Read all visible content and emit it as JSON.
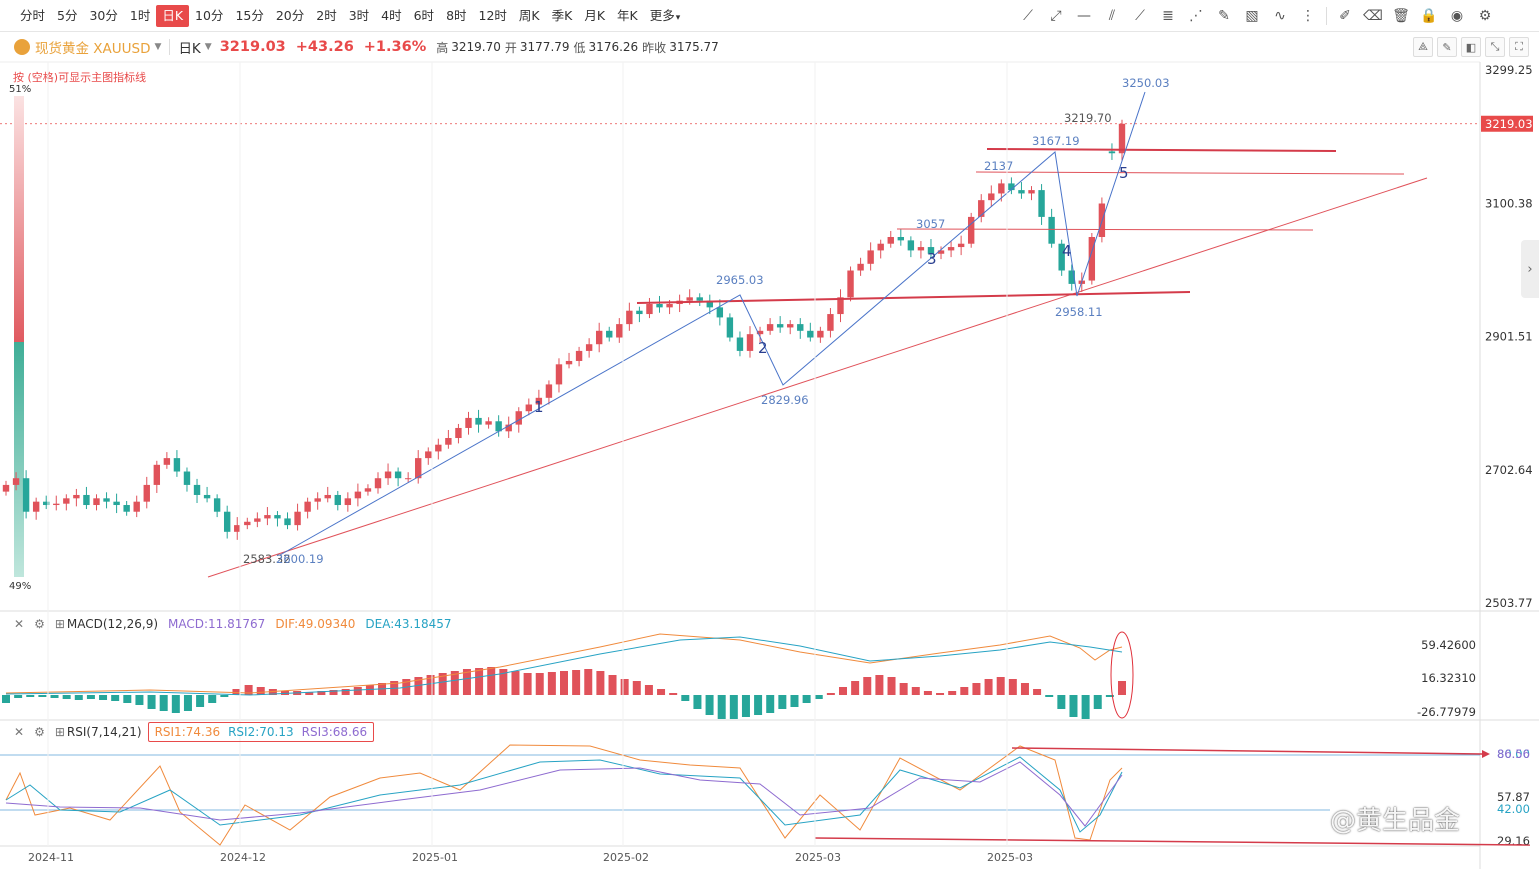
{
  "toolbar": {
    "periods": [
      "分时",
      "5分",
      "30分",
      "1时",
      "日K",
      "10分",
      "15分",
      "20分",
      "2时",
      "3时",
      "4时",
      "6时",
      "8时",
      "12时",
      "周K",
      "季K",
      "月K",
      "年K",
      "更多"
    ],
    "active_period": "日K"
  },
  "symbol": {
    "name": "现货黄金 XAUUSD",
    "period": "日K",
    "price": "3219.03",
    "change": "+43.26",
    "change_pct": "+1.36%",
    "high_label": "高",
    "high": "3219.70",
    "open_label": "开",
    "open": "3177.79",
    "low_label": "低",
    "low": "3176.26",
    "prev_label": "昨收",
    "prev": "3175.77"
  },
  "hint": "按 (空格)可显示主图指标线",
  "volume_bar": {
    "top_pct": "51%",
    "bottom_pct": "49%"
  },
  "price_axis": {
    "labels": [
      "3299.25",
      "3219.03",
      "3100.38",
      "2901.51",
      "2702.64",
      "2503.77"
    ],
    "current": "3219.03"
  },
  "macd": {
    "name": "MACD(12,26,9)",
    "macd_label": "MACD:11.81767",
    "dif_label": "DIF:49.09340",
    "dea_label": "DEA:43.18457",
    "axis": [
      "59.42600",
      "16.32310",
      "-26.77979"
    ]
  },
  "rsi": {
    "name": "RSI(7,14,21)",
    "rsi1": "RSI1:74.36",
    "rsi2": "RSI2:70.13",
    "rsi3": "RSI3:68.66",
    "axis": [
      "80.00",
      "86.56",
      "57.87",
      "42.00",
      "29.16"
    ]
  },
  "dates": [
    "2024-11",
    "2024-12",
    "2025-01",
    "2025-02",
    "2025-03",
    "2025-03"
  ],
  "annotations": {
    "p2583": "2583.32",
    "p2600": "2600.19",
    "p2965": "2965.03",
    "p2829": "2829.96",
    "p3057": "3057",
    "p2137": "2137",
    "p3167": "3167.19",
    "p3219": "3219.70",
    "p3250": "3250.03",
    "p2958": "2958.11",
    "w1": "1",
    "w2": "2",
    "w3": "3",
    "w4": "4",
    "w5": "5"
  },
  "watermark": "@黄生品金",
  "colors": {
    "up": "#e0525a",
    "down": "#26a69a",
    "accent": "#e84a4a",
    "symbol": "#e9a23b"
  }
}
